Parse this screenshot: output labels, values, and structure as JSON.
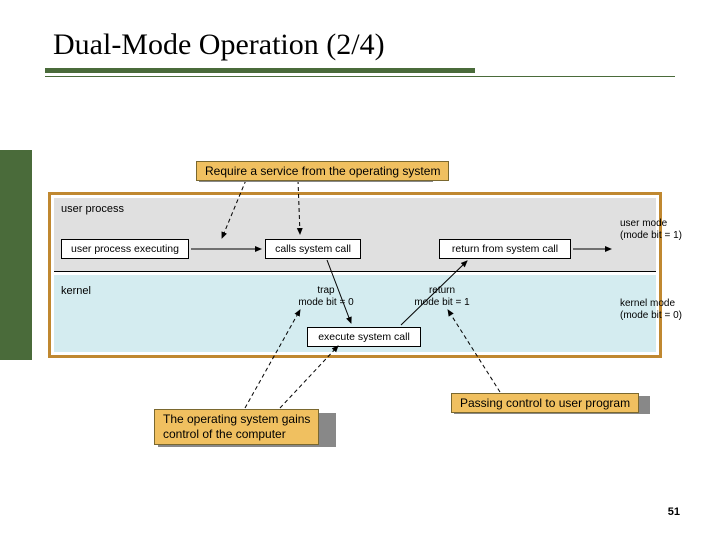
{
  "slide": {
    "title": "Dual-Mode Operation (2/4)",
    "page_number": "51"
  },
  "colors": {
    "olive_green": "#4a6b3a",
    "annot_fill": "#f0c060",
    "annot_border": "#7a682f",
    "diagram_border": "#c08830",
    "user_bg": "#e0e0e0",
    "kernel_bg": "#d4ecf0"
  },
  "annotations": {
    "top": "Require a service from the operating system",
    "bottom_left": "The operating system gains\ncontrol of the computer",
    "bottom_right": "Passing control to user program"
  },
  "diagram": {
    "user_region_label": "user process",
    "kernel_region_label": "kernel",
    "nodes": {
      "user_exec": "user process executing",
      "calls": "calls system call",
      "return_from": "return from system call",
      "execute": "execute system call"
    },
    "mode_labels": {
      "user": "user mode\n(mode bit = 1)",
      "kernel": "kernel mode\n(mode bit = 0)"
    },
    "transition_labels": {
      "trap": "trap\nmode bit = 0",
      "return": "return\nmode bit = 1"
    }
  }
}
